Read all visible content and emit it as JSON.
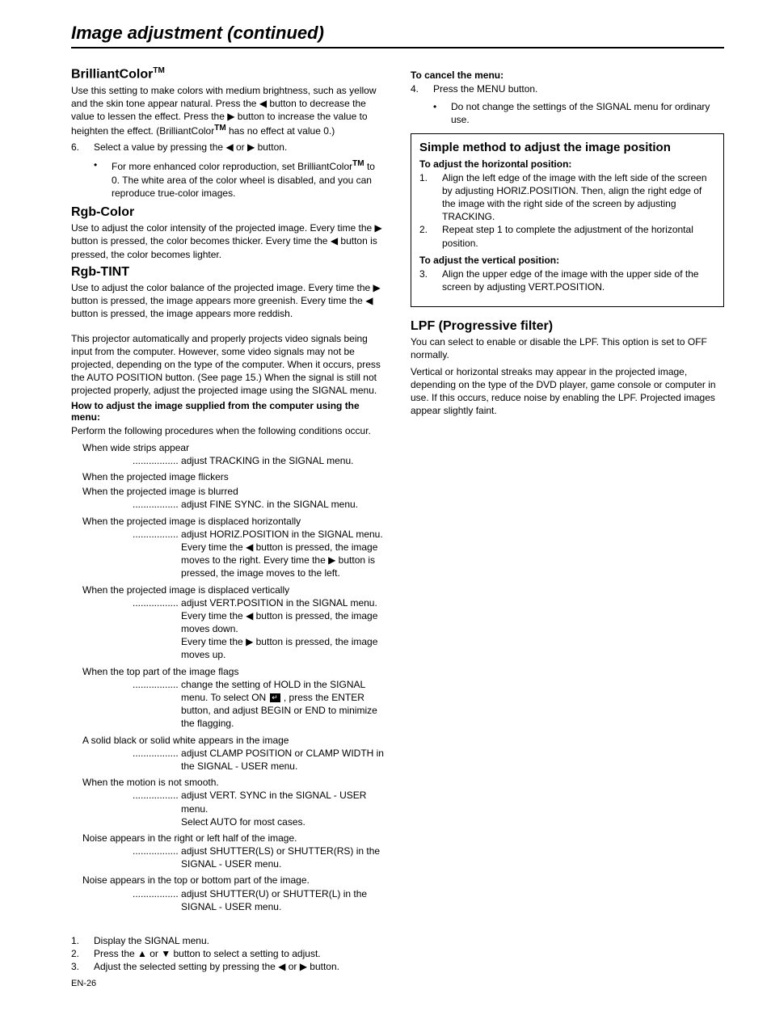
{
  "page_title": "Image adjustment (continued)",
  "page_number": "EN-26",
  "glyphs": {
    "left": "◀",
    "right": "▶",
    "up": "▲",
    "down": "▼",
    "dots": ".................",
    "enter_icon": "↵"
  },
  "left": {
    "brilliant": {
      "heading": "BrilliantColor",
      "tm": "TM",
      "body_a": "Use this setting to make colors with medium brightness, such as yellow and the skin tone appear natural. Press the ",
      "body_b": " button to decrease the value to lessen the effect. Press the ",
      "body_c": " button to increase the value to heighten the effect. (BrilliantColor",
      "body_d": " has no effect at value 0.)",
      "step6_num": "6.",
      "step6_a": "Select a value by pressing the ",
      "step6_b": " or ",
      "step6_c": " button.",
      "bullet_a": "For more enhanced color reproduction, set BrilliantColor",
      "bullet_b": " to 0. The white area of the color wheel is disabled, and you can reproduce true-color images."
    },
    "rgb_color": {
      "heading": "Rgb-Color",
      "body_a": "Use to adjust the color intensity of the projected image. Every time the ",
      "body_b": " button is pressed, the color becomes thicker. Every time the ",
      "body_c": " button is pressed, the color becomes lighter."
    },
    "rgb_tint": {
      "heading": "Rgb-TINT",
      "body_a": "Use to adjust the color balance of the projected image. Every time the ",
      "body_b": " button is pressed, the image appears more greenish. Every time the ",
      "body_c": " button is pressed, the image appears more reddish."
    },
    "auto_para": "This projector automatically and properly projects video signals being input from the computer. However, some video signals may not be projected, depending on the type of the computer. When it occurs, press the AUTO POSITION button. (See page 15.) When the signal is still not projected properly, adjust the projected image using the SIGNAL menu.",
    "howto_heading": "How to adjust the image supplied from the computer using the menu:",
    "howto_intro": "Perform the following procedures when the following conditions occur.",
    "conds": [
      {
        "when": "When wide strips appear",
        "fix": "adjust TRACKING in the SIGNAL menu."
      },
      {
        "when": "When the projected image flickers",
        "fix": ""
      },
      {
        "when": "When the projected image is blurred",
        "fix": "adjust FINE SYNC. in the SIGNAL menu."
      }
    ],
    "cond_horiz": {
      "when": "When the projected image is displaced horizontally",
      "fix_a": "adjust HORIZ.POSITION in the SIGNAL menu. Every time the ",
      "fix_b": " button is pressed, the image moves to the right. Every time the ",
      "fix_c": " button is pressed, the image moves to the left."
    },
    "cond_vert": {
      "when": "When the projected image is displaced vertically",
      "fix_a": "adjust VERT.POSITION in the SIGNAL menu. Every time the ",
      "fix_b": " button is pressed, the image moves down.",
      "fix_c": "Every time the ",
      "fix_d": " button is pressed, the image moves up."
    },
    "cond_flag": {
      "when": "When the top part of the image flags",
      "fix_a": "change the setting of HOLD in the SIGNAL menu. To select ON ",
      "fix_b": " , press the ENTER button, and adjust BEGIN or END to minimize the flagging."
    },
    "conds2": [
      {
        "when": "A solid black or solid white appears in the image",
        "fix": "adjust CLAMP POSITION or CLAMP WIDTH in the SIGNAL - USER menu."
      },
      {
        "when": "When the motion is not smooth.",
        "fix": "adjust VERT. SYNC in the SIGNAL - USER menu.",
        "extra": "Select AUTO for most cases."
      },
      {
        "when": "Noise appears in the right or left half of the image.",
        "fix": "adjust SHUTTER(LS) or SHUTTER(RS) in the SIGNAL - USER menu."
      },
      {
        "when": "Noise appears in the top or bottom part of the image.",
        "fix": "adjust SHUTTER(U) or SHUTTER(L) in the SIGNAL - USER menu."
      }
    ],
    "steps": {
      "s1n": "1.",
      "s1": "Display the SIGNAL menu.",
      "s2n": "2.",
      "s2a": "Press the ",
      "s2b": " or ",
      "s2c": " button to select a setting to adjust.",
      "s3n": "3.",
      "s3a": "Adjust the selected setting by pressing the ",
      "s3b": " or ",
      "s3c": " button."
    }
  },
  "right": {
    "cancel_heading": "To cancel the menu:",
    "cancel_n": "4.",
    "cancel_t": "Press the MENU button.",
    "cancel_bullet": "Do not change the settings of the SIGNAL menu for ordinary use.",
    "box": {
      "title": "Simple method to adjust the image position",
      "sub1": "To adjust the horizontal position:",
      "s1n": "1.",
      "s1": "Align the left edge of the image with the left side of the screen by adjusting HORIZ.POSITION. Then, align the right edge of the image with the right side of the screen by adjusting TRACKING.",
      "s2n": "2.",
      "s2": "Repeat step 1 to complete the adjustment of the horizontal position.",
      "sub2": "To adjust the vertical position:",
      "s3n": "3.",
      "s3": "Align the upper edge of the image with the upper side of the screen by adjusting VERT.POSITION."
    },
    "lpf": {
      "heading": "LPF (Progressive filter)",
      "p1": "You can select to enable or disable the LPF. This option is set to OFF normally.",
      "p2": "Vertical or horizontal streaks may appear in the projected image, depending on the type of the DVD player, game console or computer in use. If this occurs, reduce noise by enabling the LPF. Projected images appear slightly faint."
    }
  }
}
